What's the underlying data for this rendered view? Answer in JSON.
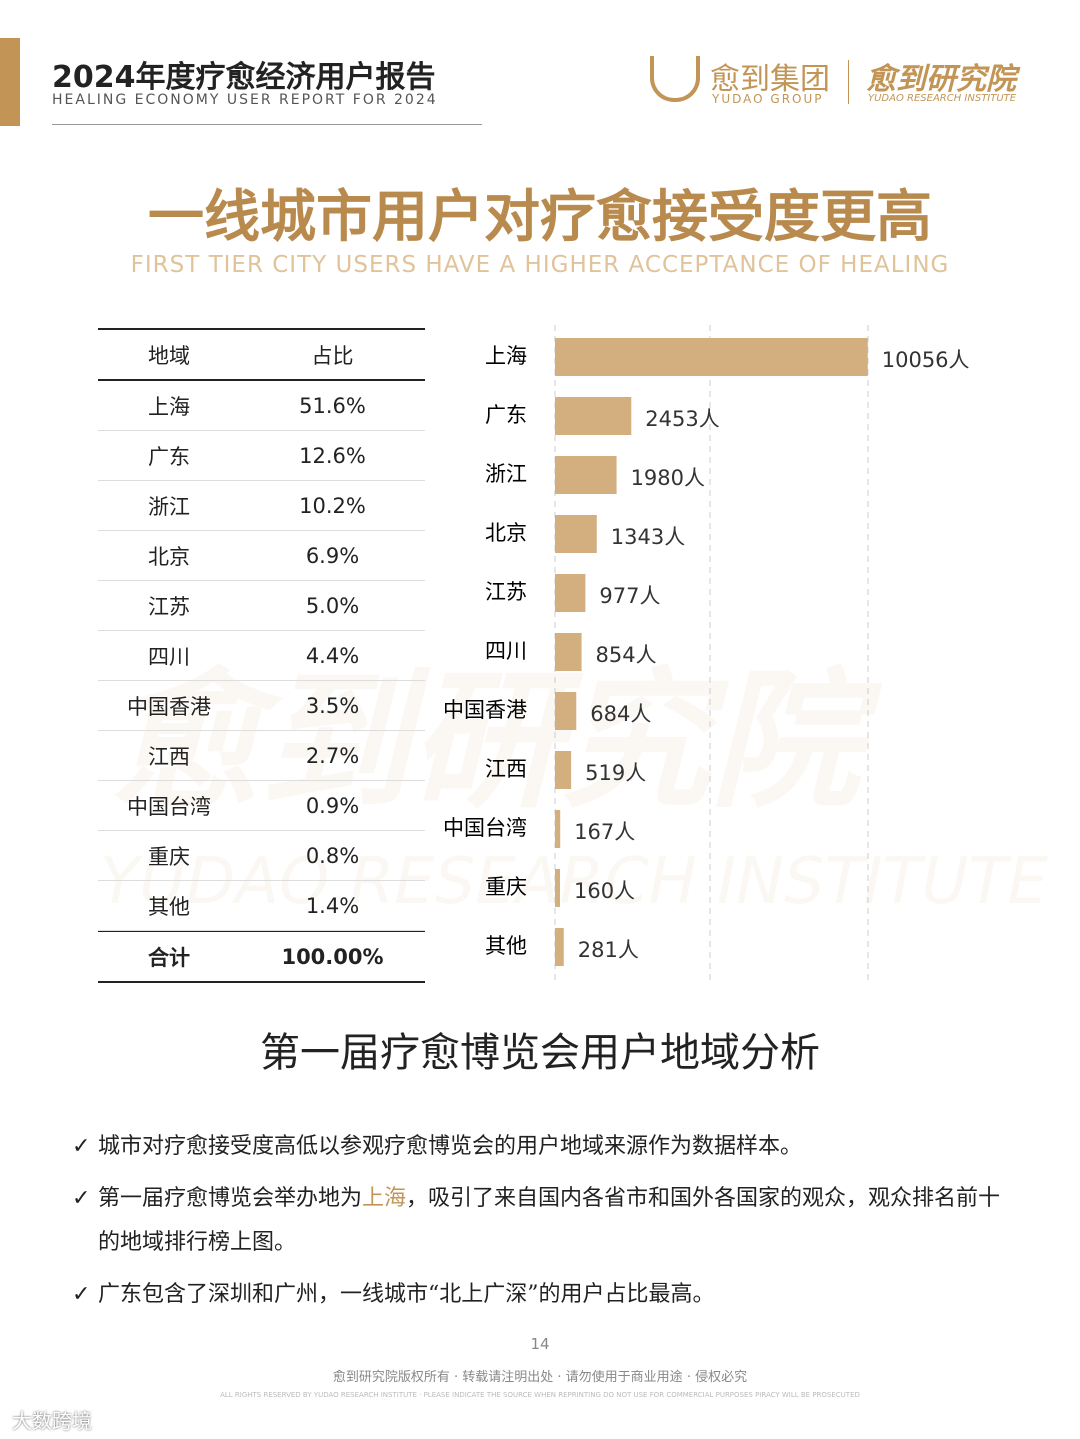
{
  "header": {
    "title": "2024年度疗愈经济用户报告",
    "subtitle": "HEALING ECONOMY USER REPORT FOR 2024",
    "logo_group": "愈到集团",
    "logo_group_en": "YUDAO GROUP",
    "logo_institute": "愈到研究院",
    "logo_institute_en": "YUDAO RESEARCH INSTITUTE"
  },
  "title": "一线城市用户对疗愈接受度更高",
  "title_en": "FIRST TIER CITY USERS HAVE A HIGHER ACCEPTANCE OF HEALING",
  "table": {
    "header": [
      "地域",
      "占比"
    ],
    "rows": [
      [
        "上海",
        "51.6%"
      ],
      [
        "广东",
        "12.6%"
      ],
      [
        "浙江",
        "10.2%"
      ],
      [
        "北京",
        "6.9%"
      ],
      [
        "江苏",
        "5.0%"
      ],
      [
        "四川",
        "4.4%"
      ],
      [
        "中国香港",
        "3.5%"
      ],
      [
        "江西",
        "2.7%"
      ],
      [
        "中国台湾",
        "0.9%"
      ],
      [
        "重庆",
        "0.8%"
      ],
      [
        "其他",
        "1.4%"
      ]
    ],
    "total": [
      "合计",
      "100.00%"
    ]
  },
  "chart_data": {
    "type": "bar",
    "orientation": "horizontal",
    "categories": [
      "上海",
      "广东",
      "浙江",
      "北京",
      "江苏",
      "四川",
      "中国香港",
      "江西",
      "中国台湾",
      "重庆",
      "其他"
    ],
    "values": [
      10056,
      2453,
      1980,
      1343,
      977,
      854,
      684,
      519,
      167,
      160,
      281
    ],
    "value_labels": [
      "10056人",
      "2453人",
      "1980人",
      "1343人",
      "977人",
      "854人",
      "684人",
      "519人",
      "167人",
      "160人",
      "281人"
    ],
    "color": "#d3ae7e",
    "xlim": [
      0,
      10000
    ]
  },
  "section_title": "第一届疗愈博览会用户地域分析",
  "bullets": [
    [
      "城市对疗愈接受度高低以参观疗愈博览会的用户地域来源作为数据样本。"
    ],
    [
      "第一届疗愈博览会举办地为",
      "上海",
      "，吸引了来自国内各省市和国外各国家的观众，观众排名前十的地域排行榜上图。"
    ],
    [
      "广东包含了深圳和广州，一线城市“北上广深”的用户占比最高。"
    ]
  ],
  "watermark": {
    "cn": "愈到研究院",
    "en": "YUDAO RESEARCH INSTITUTE"
  },
  "footer": {
    "page": "14",
    "copyright": "愈到研究院版权所有 · 转载请注明出处 · 请勿使用于商业用途 · 侵权必究",
    "copyright_en": "ALL RIGHTS RESERVED BY YUDAO RESEARCH INSTITUTE · PLEASE INDICATE THE SOURCE WHEN REPRINTING DO NOT USE FOR COMMERCIAL PURPOSES PIRACY WILL BE PROSECUTED",
    "mark": "大数跨境"
  }
}
